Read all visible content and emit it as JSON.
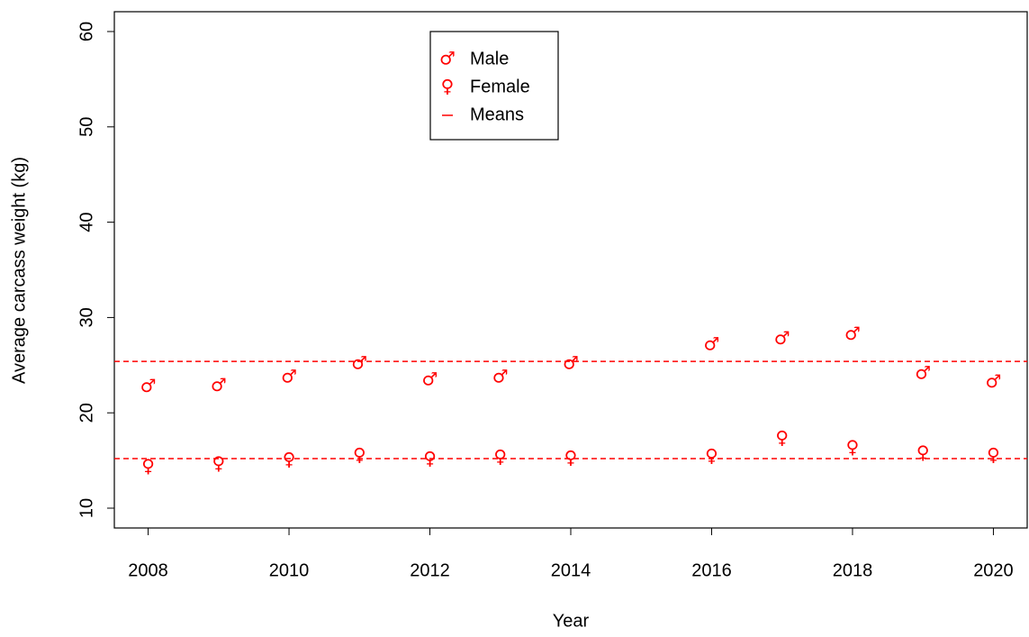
{
  "chart_data": {
    "type": "scatter",
    "x_label": "Year",
    "y_label": "Average carcass weight (kg)",
    "x": [
      2008,
      2009,
      2010,
      2011,
      2012,
      2013,
      2014,
      2016,
      2017,
      2018,
      2019,
      2020
    ],
    "series": [
      {
        "name": "Male",
        "marker": "♂",
        "color": "#ff0000",
        "mean": 25.4,
        "values": [
          22.7,
          22.8,
          23.7,
          25.1,
          23.4,
          23.7,
          25.1,
          27.1,
          27.7,
          28.2,
          24.1,
          23.2
        ]
      },
      {
        "name": "Female",
        "marker": "♀",
        "color": "#ff0000",
        "mean": 15.2,
        "values": [
          14.3,
          14.6,
          15.0,
          15.5,
          15.1,
          15.3,
          15.2,
          15.4,
          17.3,
          16.3,
          15.7,
          15.5
        ]
      }
    ],
    "mean_label": "Means",
    "xlim": [
      2007.52,
      2020.48
    ],
    "ylim": [
      7.92,
      62.08
    ],
    "xticks": [
      2008,
      2010,
      2012,
      2014,
      2016,
      2018,
      2020
    ],
    "yticks": [
      10,
      20,
      30,
      40,
      50,
      60
    ],
    "legend": "top-center"
  }
}
